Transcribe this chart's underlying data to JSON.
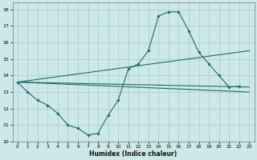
{
  "xlabel": "Humidex (Indice chaleur)",
  "xlim": [
    -0.5,
    23.5
  ],
  "ylim": [
    10,
    18.4
  ],
  "yticks": [
    10,
    11,
    12,
    13,
    14,
    15,
    16,
    17,
    18
  ],
  "xticks": [
    0,
    1,
    2,
    3,
    4,
    5,
    6,
    7,
    8,
    9,
    10,
    11,
    12,
    13,
    14,
    15,
    16,
    17,
    18,
    19,
    20,
    21,
    22,
    23
  ],
  "bg_color": "#cde8e8",
  "line_color": "#1e6b6b",
  "grid_color": "#aecece",
  "main_series_x": [
    0,
    1,
    2,
    3,
    4,
    5,
    6,
    7,
    8,
    9,
    10,
    11,
    12,
    13,
    14,
    15,
    16,
    17,
    18,
    19,
    20,
    21,
    22
  ],
  "main_series_y": [
    13.6,
    13.0,
    12.5,
    12.2,
    11.7,
    11.0,
    10.8,
    10.4,
    10.5,
    11.6,
    12.5,
    14.4,
    14.7,
    15.5,
    17.6,
    17.85,
    17.85,
    16.7,
    15.4,
    14.7,
    14.0,
    13.3,
    13.35
  ],
  "straight_lines": [
    {
      "x": [
        0,
        23
      ],
      "y": [
        13.6,
        15.5
      ]
    },
    {
      "x": [
        0,
        23
      ],
      "y": [
        13.6,
        13.3
      ]
    },
    {
      "x": [
        0,
        23
      ],
      "y": [
        13.6,
        13.0
      ]
    }
  ]
}
